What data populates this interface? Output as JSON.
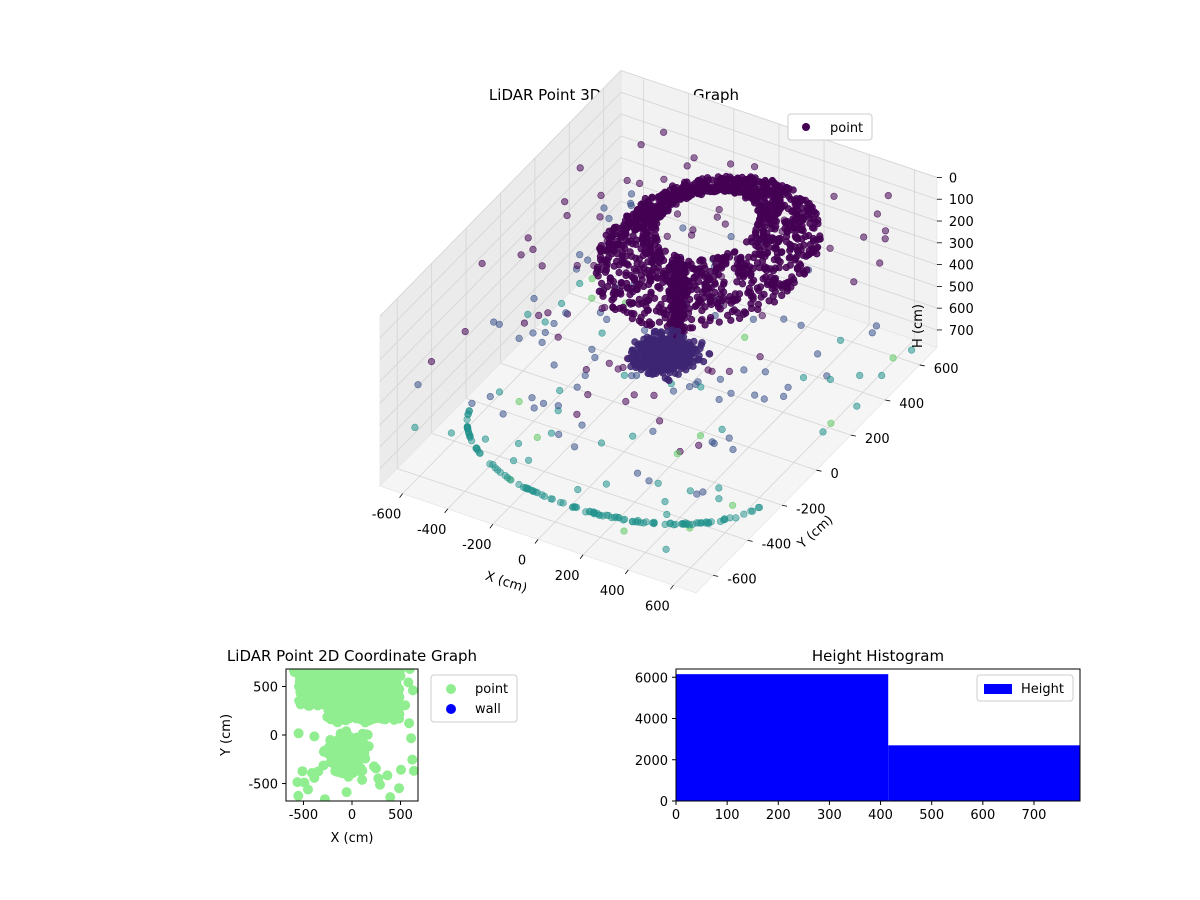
{
  "chart_data": [
    {
      "type": "scatter3d",
      "title": "LiDAR Point 3D Coordinate Graph",
      "xlabel": "X (cm)",
      "ylabel": "Y (cm)",
      "zlabel": "H (cm)",
      "xlim": [
        -700,
        700
      ],
      "ylim": [
        -700,
        700
      ],
      "zlim": [
        0,
        780
      ],
      "z_inverted": true,
      "xticks": [
        -600,
        -400,
        -200,
        0,
        200,
        400,
        600
      ],
      "yticks": [
        -600,
        -400,
        -200,
        0,
        200,
        400,
        600
      ],
      "zticks": [
        0,
        100,
        200,
        300,
        400,
        500,
        600,
        700
      ],
      "legend": {
        "entries": [
          "point"
        ],
        "placement": "top-right"
      },
      "colormap": "viridis",
      "colors": {
        "dense": "#440154",
        "mid": "#3b528b",
        "teal": "#21918c",
        "light": "#5ec962"
      },
      "grid": true
    },
    {
      "type": "scatter",
      "title": "LiDAR Point 2D Coordinate Graph",
      "xlabel": "X (cm)",
      "ylabel": "Y (cm)",
      "xlim": [
        -680,
        680
      ],
      "ylim": [
        -680,
        680
      ],
      "xticks": [
        -500,
        0,
        500
      ],
      "yticks": [
        -500,
        0,
        500
      ],
      "series": [
        {
          "name": "point",
          "color": "#90ee90"
        },
        {
          "name": "wall",
          "color": "#0000ff"
        }
      ],
      "legend": {
        "placement": "outside-right"
      }
    },
    {
      "type": "bar",
      "title": "Height Histogram",
      "xlim": [
        0,
        790
      ],
      "ylim": [
        0,
        6400
      ],
      "xticks": [
        0,
        100,
        200,
        300,
        400,
        500,
        600,
        700
      ],
      "yticks": [
        0,
        2000,
        4000,
        6000
      ],
      "bins": [
        {
          "x0": 0,
          "x1": 415,
          "count": 6150
        },
        {
          "x0": 415,
          "x1": 790,
          "count": 2700
        }
      ],
      "series": [
        {
          "name": "Height",
          "color": "#0000ff"
        }
      ],
      "legend": {
        "placement": "top-right"
      }
    }
  ]
}
